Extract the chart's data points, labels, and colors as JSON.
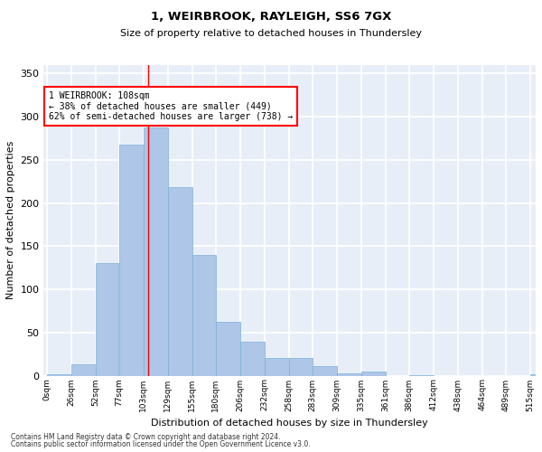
{
  "title_line1": "1, WEIRBROOK, RAYLEIGH, SS6 7GX",
  "title_line2": "Size of property relative to detached houses in Thundersley",
  "xlabel": "Distribution of detached houses by size in Thundersley",
  "ylabel": "Number of detached properties",
  "footnote1": "Contains HM Land Registry data © Crown copyright and database right 2024.",
  "footnote2": "Contains public sector information licensed under the Open Government Licence v3.0.",
  "bar_color": "#aec6e8",
  "bar_edge_color": "#7ab3d4",
  "background_color": "#e8eef8",
  "grid_color": "#ffffff",
  "annotation_text": "1 WEIRBROOK: 108sqm\n← 38% of detached houses are smaller (449)\n62% of semi-detached houses are larger (738) →",
  "property_line_x": 108,
  "categories": [
    "0sqm",
    "26sqm",
    "52sqm",
    "77sqm",
    "103sqm",
    "129sqm",
    "155sqm",
    "180sqm",
    "206sqm",
    "232sqm",
    "258sqm",
    "283sqm",
    "309sqm",
    "335sqm",
    "361sqm",
    "386sqm",
    "412sqm",
    "438sqm",
    "464sqm",
    "489sqm",
    "515sqm"
  ],
  "bin_edges": [
    0,
    26,
    52,
    77,
    103,
    129,
    155,
    180,
    206,
    232,
    258,
    283,
    309,
    335,
    361,
    386,
    412,
    438,
    464,
    489,
    515
  ],
  "values": [
    2,
    13,
    130,
    268,
    288,
    219,
    140,
    62,
    39,
    20,
    20,
    11,
    3,
    5,
    0,
    1,
    0,
    0,
    0,
    0,
    2
  ],
  "ylim": [
    0,
    360
  ],
  "yticks": [
    0,
    50,
    100,
    150,
    200,
    250,
    300,
    350
  ]
}
